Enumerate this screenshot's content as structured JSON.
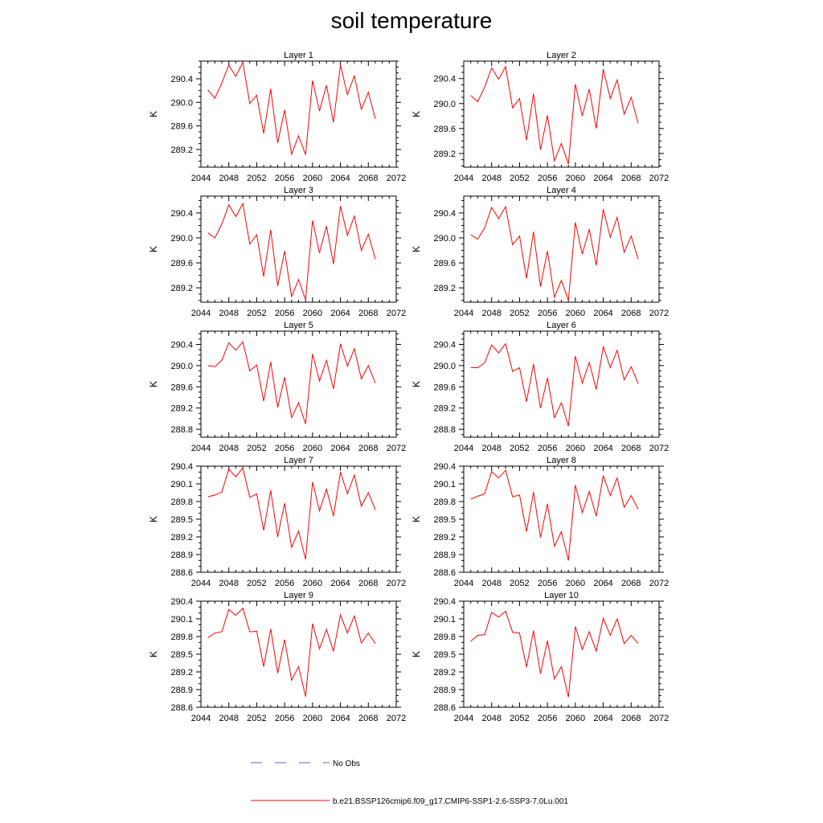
{
  "title": "soil temperature",
  "legend": {
    "obs_label": "No Obs",
    "model_label": "b.e21.BSSP126cmip6.f09_g17.CMIP6-SSP1-2.6-SSP3-7.0Lu.001",
    "obs_color": "#6666cc",
    "model_color": "#ff0000"
  },
  "colors": {
    "line": "#ff0000",
    "axis": "#000000"
  },
  "chart_data": [
    {
      "type": "line",
      "title": "Layer 1",
      "ylabel": "K",
      "xlim": [
        2044,
        2072
      ],
      "ylim": [
        288.9,
        290.7
      ],
      "xticks": [
        "2044",
        "2048",
        "2052",
        "2056",
        "2060",
        "2064",
        "2068",
        "2072"
      ],
      "yticks": [
        "289.2",
        "289.6",
        "290.0",
        "290.4"
      ],
      "series": [
        {
          "x": [
            2045,
            2046,
            2047,
            2048,
            2049,
            2050,
            2051,
            2052,
            2053,
            2054,
            2055,
            2056,
            2057,
            2058,
            2059,
            2060,
            2061,
            2062,
            2063,
            2064,
            2065,
            2066,
            2067,
            2068,
            2069
          ],
          "values": [
            290.21,
            290.07,
            290.33,
            290.63,
            290.44,
            290.68,
            289.98,
            290.12,
            289.47,
            290.23,
            289.31,
            289.87,
            289.12,
            289.43,
            289.11,
            290.37,
            289.85,
            290.29,
            289.66,
            290.63,
            290.13,
            290.45,
            289.88,
            290.17,
            289.72
          ]
        }
      ]
    },
    {
      "type": "line",
      "title": "Layer 2",
      "ylabel": "K",
      "xlim": [
        2044,
        2072
      ],
      "ylim": [
        288.98,
        290.68
      ],
      "xticks": [
        "2044",
        "2048",
        "2052",
        "2056",
        "2060",
        "2064",
        "2068",
        "2072"
      ],
      "yticks": [
        "289.2",
        "289.6",
        "290.0",
        "290.4"
      ],
      "series": [
        {
          "x": [
            2045,
            2046,
            2047,
            2048,
            2049,
            2050,
            2051,
            2052,
            2053,
            2054,
            2055,
            2056,
            2057,
            2058,
            2059,
            2060,
            2061,
            2062,
            2063,
            2064,
            2065,
            2066,
            2067,
            2068,
            2069
          ],
          "values": [
            290.13,
            290.03,
            290.26,
            290.57,
            290.39,
            290.59,
            289.93,
            290.08,
            289.41,
            290.16,
            289.26,
            289.81,
            289.08,
            289.36,
            289.03,
            290.31,
            289.8,
            290.23,
            289.6,
            290.55,
            290.08,
            290.38,
            289.83,
            290.1,
            289.68
          ]
        }
      ]
    },
    {
      "type": "line",
      "title": "Layer 3",
      "ylabel": "K",
      "xlim": [
        2044,
        2072
      ],
      "ylim": [
        288.97,
        290.67
      ],
      "xticks": [
        "2044",
        "2048",
        "2052",
        "2056",
        "2060",
        "2064",
        "2068",
        "2072"
      ],
      "yticks": [
        "289.2",
        "289.6",
        "290.0",
        "290.4"
      ],
      "series": [
        {
          "x": [
            2045,
            2046,
            2047,
            2048,
            2049,
            2050,
            2051,
            2052,
            2053,
            2054,
            2055,
            2056,
            2057,
            2058,
            2059,
            2060,
            2061,
            2062,
            2063,
            2064,
            2065,
            2066,
            2067,
            2068,
            2069
          ],
          "values": [
            290.08,
            290.0,
            290.22,
            290.53,
            290.34,
            290.55,
            289.9,
            290.05,
            289.38,
            290.13,
            289.23,
            289.79,
            289.06,
            289.33,
            289.01,
            290.28,
            289.76,
            290.19,
            289.58,
            290.51,
            290.04,
            290.35,
            289.8,
            290.06,
            289.66
          ]
        }
      ]
    },
    {
      "type": "line",
      "title": "Layer 4",
      "ylabel": "K",
      "xlim": [
        2044,
        2072
      ],
      "ylim": [
        288.97,
        290.67
      ],
      "xticks": [
        "2044",
        "2048",
        "2052",
        "2056",
        "2060",
        "2064",
        "2068",
        "2072"
      ],
      "yticks": [
        "289.2",
        "289.6",
        "290.0",
        "290.4"
      ],
      "series": [
        {
          "x": [
            2045,
            2046,
            2047,
            2048,
            2049,
            2050,
            2051,
            2052,
            2053,
            2054,
            2055,
            2056,
            2057,
            2058,
            2059,
            2060,
            2061,
            2062,
            2063,
            2064,
            2065,
            2066,
            2067,
            2068,
            2069
          ],
          "values": [
            290.05,
            289.98,
            290.16,
            290.49,
            290.31,
            290.5,
            289.89,
            290.03,
            289.35,
            290.1,
            289.22,
            289.79,
            289.05,
            289.32,
            289.0,
            290.25,
            289.74,
            290.14,
            289.56,
            290.46,
            290.01,
            290.33,
            289.77,
            290.03,
            289.66
          ]
        }
      ]
    },
    {
      "type": "line",
      "title": "Layer 5",
      "ylabel": "K",
      "xlim": [
        2044,
        2072
      ],
      "ylim": [
        288.65,
        290.65
      ],
      "xticks": [
        "2044",
        "2048",
        "2052",
        "2056",
        "2060",
        "2064",
        "2068",
        "2072"
      ],
      "yticks": [
        "288.8",
        "289.2",
        "289.6",
        "290.0",
        "290.4"
      ],
      "series": [
        {
          "x": [
            2045,
            2046,
            2047,
            2048,
            2049,
            2050,
            2051,
            2052,
            2053,
            2054,
            2055,
            2056,
            2057,
            2058,
            2059,
            2060,
            2061,
            2062,
            2063,
            2064,
            2065,
            2066,
            2067,
            2068,
            2069
          ],
          "values": [
            290.0,
            289.98,
            290.1,
            290.43,
            290.29,
            290.45,
            289.9,
            290.01,
            289.33,
            290.07,
            289.21,
            289.78,
            289.02,
            289.3,
            288.9,
            290.22,
            289.71,
            290.1,
            289.56,
            290.41,
            289.99,
            290.32,
            289.75,
            290.0,
            289.67
          ]
        }
      ]
    },
    {
      "type": "line",
      "title": "Layer 6",
      "ylabel": "K",
      "xlim": [
        2044,
        2072
      ],
      "ylim": [
        288.65,
        290.65
      ],
      "xticks": [
        "2044",
        "2048",
        "2052",
        "2056",
        "2060",
        "2064",
        "2068",
        "2072"
      ],
      "yticks": [
        "288.8",
        "289.2",
        "289.6",
        "290.0",
        "290.4"
      ],
      "series": [
        {
          "x": [
            2045,
            2046,
            2047,
            2048,
            2049,
            2050,
            2051,
            2052,
            2053,
            2054,
            2055,
            2056,
            2057,
            2058,
            2059,
            2060,
            2061,
            2062,
            2063,
            2064,
            2065,
            2066,
            2067,
            2068,
            2069
          ],
          "values": [
            289.96,
            289.96,
            290.05,
            290.39,
            290.24,
            290.41,
            289.89,
            289.96,
            289.32,
            290.03,
            289.2,
            289.77,
            289.02,
            289.3,
            288.86,
            290.18,
            289.67,
            290.06,
            289.55,
            290.36,
            289.96,
            290.29,
            289.73,
            289.98,
            289.66
          ]
        }
      ]
    },
    {
      "type": "line",
      "title": "Layer 7",
      "ylabel": "K",
      "xlim": [
        2044,
        2072
      ],
      "ylim": [
        288.6,
        290.4
      ],
      "xticks": [
        "2044",
        "2048",
        "2052",
        "2056",
        "2060",
        "2064",
        "2068",
        "2072"
      ],
      "yticks": [
        "288.6",
        "288.9",
        "289.2",
        "289.5",
        "289.8",
        "290.1",
        "290.4"
      ],
      "series": [
        {
          "x": [
            2045,
            2046,
            2047,
            2048,
            2049,
            2050,
            2051,
            2052,
            2053,
            2054,
            2055,
            2056,
            2057,
            2058,
            2059,
            2060,
            2061,
            2062,
            2063,
            2064,
            2065,
            2066,
            2067,
            2068,
            2069
          ],
          "values": [
            289.88,
            289.91,
            289.96,
            290.35,
            290.22,
            290.37,
            289.87,
            289.93,
            289.31,
            289.99,
            289.2,
            289.77,
            289.02,
            289.3,
            288.82,
            290.13,
            289.64,
            290.01,
            289.55,
            290.3,
            289.93,
            290.25,
            289.72,
            289.95,
            289.66
          ]
        }
      ]
    },
    {
      "type": "line",
      "title": "Layer 8",
      "ylabel": "K",
      "xlim": [
        2044,
        2072
      ],
      "ylim": [
        288.6,
        290.4
      ],
      "xticks": [
        "2044",
        "2048",
        "2052",
        "2056",
        "2060",
        "2064",
        "2068",
        "2072"
      ],
      "yticks": [
        "288.6",
        "288.9",
        "289.2",
        "289.5",
        "289.8",
        "290.1",
        "290.4"
      ],
      "series": [
        {
          "x": [
            2045,
            2046,
            2047,
            2048,
            2049,
            2050,
            2051,
            2052,
            2053,
            2054,
            2055,
            2056,
            2057,
            2058,
            2059,
            2060,
            2061,
            2062,
            2063,
            2064,
            2065,
            2066,
            2067,
            2068,
            2069
          ],
          "values": [
            289.84,
            289.89,
            289.93,
            290.31,
            290.2,
            290.33,
            289.88,
            289.91,
            289.29,
            289.96,
            289.19,
            289.76,
            289.04,
            289.29,
            288.8,
            290.08,
            289.61,
            289.97,
            289.55,
            290.24,
            289.9,
            290.2,
            289.7,
            289.9,
            289.67
          ]
        }
      ]
    },
    {
      "type": "line",
      "title": "Layer 9",
      "ylabel": "K",
      "xlim": [
        2044,
        2072
      ],
      "ylim": [
        288.6,
        290.4
      ],
      "xticks": [
        "2044",
        "2048",
        "2052",
        "2056",
        "2060",
        "2064",
        "2068",
        "2072"
      ],
      "yticks": [
        "288.6",
        "288.9",
        "289.2",
        "289.5",
        "289.8",
        "290.1",
        "290.4"
      ],
      "series": [
        {
          "x": [
            2045,
            2046,
            2047,
            2048,
            2049,
            2050,
            2051,
            2052,
            2053,
            2054,
            2055,
            2056,
            2057,
            2058,
            2059,
            2060,
            2061,
            2062,
            2063,
            2064,
            2065,
            2066,
            2067,
            2068,
            2069
          ],
          "values": [
            289.78,
            289.86,
            289.88,
            290.26,
            290.16,
            290.28,
            289.88,
            289.89,
            289.29,
            289.93,
            289.18,
            289.75,
            289.06,
            289.29,
            288.78,
            290.02,
            289.59,
            289.92,
            289.55,
            290.17,
            289.86,
            290.15,
            289.69,
            289.86,
            289.68
          ]
        }
      ]
    },
    {
      "type": "line",
      "title": "Layer 10",
      "ylabel": "K",
      "xlim": [
        2044,
        2072
      ],
      "ylim": [
        288.6,
        290.4
      ],
      "xticks": [
        "2044",
        "2048",
        "2052",
        "2056",
        "2060",
        "2064",
        "2068",
        "2072"
      ],
      "yticks": [
        "288.6",
        "288.9",
        "289.2",
        "289.5",
        "289.8",
        "290.1",
        "290.4"
      ],
      "series": [
        {
          "x": [
            2045,
            2046,
            2047,
            2048,
            2049,
            2050,
            2051,
            2052,
            2053,
            2054,
            2055,
            2056,
            2057,
            2058,
            2059,
            2060,
            2061,
            2062,
            2063,
            2064,
            2065,
            2066,
            2067,
            2068,
            2069
          ],
          "values": [
            289.72,
            289.82,
            289.83,
            290.21,
            290.13,
            290.23,
            289.87,
            289.86,
            289.28,
            289.9,
            289.17,
            289.73,
            289.08,
            289.29,
            288.77,
            289.97,
            289.58,
            289.88,
            289.55,
            290.11,
            289.82,
            290.1,
            289.68,
            289.82,
            289.68
          ]
        }
      ]
    }
  ]
}
